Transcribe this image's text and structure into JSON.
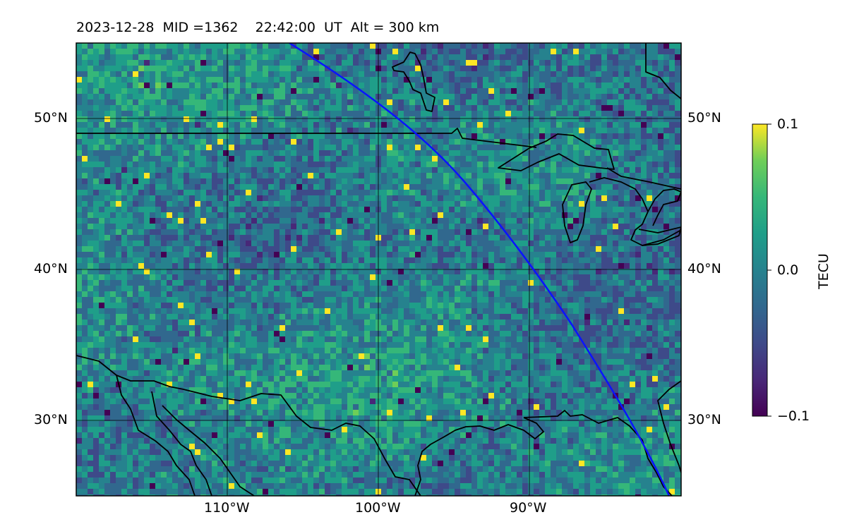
{
  "title": {
    "date": "2023-12-28",
    "mid": "MID =1362",
    "time": "22:42:00  UT",
    "alt": "Alt = 300 km"
  },
  "map": {
    "lon_range": [
      -120,
      -80
    ],
    "lat_range": [
      25,
      55
    ],
    "lat_labels": [
      {
        "lat": 50,
        "text": "50°N"
      },
      {
        "lat": 40,
        "text": "40°N"
      },
      {
        "lat": 30,
        "text": "30°N"
      }
    ],
    "lon_labels": [
      {
        "lon": -110,
        "text": "110°W"
      },
      {
        "lon": -100,
        "text": "100°W"
      },
      {
        "lon": -90,
        "text": "90°W"
      }
    ],
    "colormap": "viridis",
    "field": "TEC perturbation (dTEC)",
    "coastline_color": "#000000",
    "track_color": "#0a14ff"
  },
  "colorbar": {
    "label": "TECU",
    "min": -0.1,
    "max": 0.1,
    "ticks": [
      "0.1",
      "0.0",
      "−0.1"
    ]
  }
}
